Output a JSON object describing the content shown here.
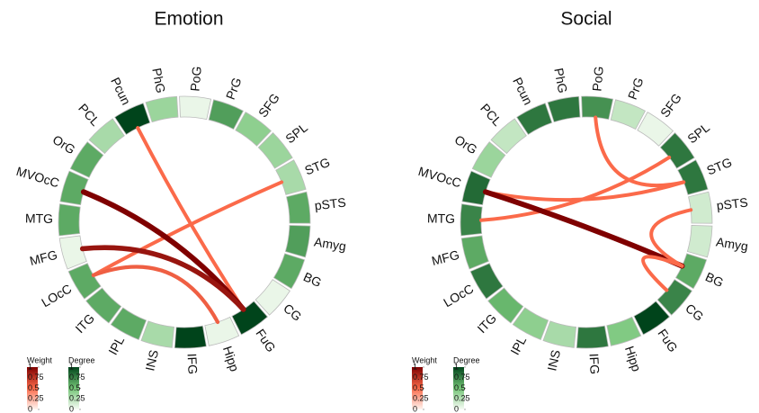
{
  "chart_data": [
    {
      "type": "chord",
      "title": "Emotion",
      "categories": [
        "PoG",
        "PrG",
        "SFG",
        "SPL",
        "STG",
        "pSTS",
        "Amyg",
        "BG",
        "CG",
        "FuG",
        "Hipp",
        "IFG",
        "INS",
        "IPL",
        "ITG",
        "LOcC",
        "MFG",
        "MTG",
        "MVOcC",
        "OrG",
        "PCL",
        "Pcun",
        "PhG"
      ],
      "values": [
        0.05,
        0.65,
        0.4,
        0.35,
        0.3,
        0.6,
        0.65,
        0.6,
        0.05,
        1,
        0.05,
        1,
        0.3,
        0.6,
        0.6,
        0.6,
        0.05,
        0.6,
        0.6,
        0.6,
        0.3,
        1,
        0.35
      ],
      "links": [
        {
          "source": "Pcun",
          "target": "FuG",
          "weight": 0.5
        },
        {
          "source": "STG",
          "target": "LOcC",
          "weight": 0.5
        },
        {
          "source": "MVOcC",
          "target": "FuG",
          "weight": 1
        },
        {
          "source": "MFG",
          "target": "FuG",
          "weight": 0.9
        },
        {
          "source": "LOcC",
          "target": "Hipp",
          "weight": 0.55
        }
      ],
      "degree_colormap": [
        "#f7fcf5",
        "#74c476",
        "#00441b"
      ],
      "weight_colormap": [
        "#fff5f0",
        "#fb6a4a",
        "#7f0000"
      ],
      "legend": {
        "weight_title": "Weight",
        "degree_title": "Degree",
        "ticks": [
          0,
          0.25,
          0.5,
          0.75,
          1
        ]
      }
    },
    {
      "type": "chord",
      "title": "Social",
      "categories": [
        "PoG",
        "PrG",
        "SFG",
        "SPL",
        "STG",
        "pSTS",
        "Amyg",
        "BG",
        "CG",
        "FuG",
        "Hipp",
        "IFG",
        "INS",
        "IPL",
        "ITG",
        "LOcC",
        "MFG",
        "MTG",
        "MVOcC",
        "OrG",
        "PCL",
        "Pcun",
        "PhG"
      ],
      "values": [
        0.7,
        0.2,
        0.05,
        0.8,
        0.8,
        0.15,
        0.15,
        0.6,
        0.75,
        1,
        0.45,
        0.8,
        0.3,
        0.4,
        0.55,
        0.8,
        0.6,
        0.75,
        0.85,
        0.35,
        0.2,
        0.8,
        0.8
      ],
      "links": [
        {
          "source": "PoG",
          "target": "STG",
          "weight": 0.5
        },
        {
          "source": "MVOcC",
          "target": "STG",
          "weight": 0.5
        },
        {
          "source": "MTG",
          "target": "SPL",
          "weight": 0.5
        },
        {
          "source": "MVOcC",
          "target": "BG",
          "weight": 1
        },
        {
          "source": "pSTS",
          "target": "BG",
          "weight": 0.5
        },
        {
          "source": "BG",
          "target": "CG",
          "weight": 0.5
        }
      ],
      "degree_colormap": [
        "#f7fcf5",
        "#74c476",
        "#00441b"
      ],
      "weight_colormap": [
        "#fff5f0",
        "#fb6a4a",
        "#7f0000"
      ],
      "legend": {
        "weight_title": "Weight",
        "degree_title": "Degree",
        "ticks": [
          0,
          0.25,
          0.5,
          0.75,
          1
        ]
      }
    }
  ]
}
